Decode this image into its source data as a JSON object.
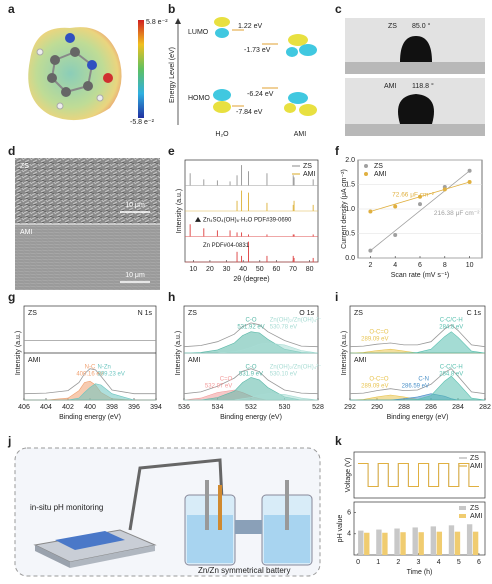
{
  "panel_labels": [
    "a",
    "b",
    "c",
    "d",
    "e",
    "f",
    "g",
    "h",
    "i",
    "j",
    "k"
  ],
  "a": {
    "max": "5.8 e⁻²",
    "min": "-5.8 e⁻²"
  },
  "b": {
    "y_axis": "Energy Level (eV)",
    "lumo": "LUMO",
    "homo": "HOMO",
    "h2o_lumo": "1.22 eV",
    "ami_lumo": "-1.73 eV",
    "ami_homo": "-6.24 eV",
    "h2o_homo": "-7.84 eV",
    "h2o": "H₂O",
    "ami": "AMI"
  },
  "c": {
    "top_name": "ZS",
    "top_angle": "85.0 °",
    "bottom_name": "AMI",
    "bottom_angle": "118.8 °"
  },
  "d": {
    "top_name": "ZS",
    "top_scale": "10 μm",
    "bottom_name": "AMI",
    "bottom_scale": "10 μm"
  },
  "j": {
    "left_label": "in-situ pH monitoring",
    "right_label": "Zn/Zn symmetrical battery"
  },
  "chart_data": [
    {
      "type": "stick",
      "xlabel": "2θ (degree)",
      "ylabel": "Intensity (a.u.)",
      "xlim": [
        5,
        85
      ],
      "xticks": [
        10,
        20,
        30,
        40,
        50,
        60,
        70,
        80
      ],
      "ylim": [
        0,
        1
      ],
      "legend": "upper right",
      "x": [
        8.1,
        16.3,
        24.5,
        32.1,
        36.3,
        39.0,
        43.2,
        54.3,
        70.1,
        70.6,
        82.1
      ],
      "series": [
        {
          "name": "ZS",
          "color": "#9e9e9e",
          "subplot": 0,
          "values": [
            0.6,
            0.3,
            0.25,
            0.2,
            0.5,
            1,
            0.7,
            0.6,
            0.5,
            0.4,
            0.3
          ]
        },
        {
          "name": "AMI",
          "color": "#e0b84a",
          "subplot": 1,
          "values": [
            0,
            0,
            0,
            0,
            0.5,
            1,
            0.9,
            0.4,
            0.3,
            0.5,
            0.3
          ]
        }
      ],
      "references": [
        {
          "name": "Zn₄SO₄(OH)₆·H₂O PDF#39-0690",
          "color": "#e05050",
          "subplot": 2,
          "values": [
            0.6,
            0.4,
            0.3,
            0.3,
            0.2,
            0.2,
            0.1,
            0.1,
            0.1,
            0.1,
            0.1
          ]
        },
        {
          "name": "Zn PDF#04-0831",
          "color": "#e05050",
          "subplot": 3,
          "values": [
            0,
            0,
            0,
            0,
            0.5,
            0.3,
            1,
            0.3,
            0.3,
            0.2,
            0.2
          ]
        }
      ]
    },
    {
      "type": "scatter",
      "xlabel": "Scan rate (mV s⁻¹)",
      "ylabel": "Current density (μA cm⁻²)",
      "xlim": [
        1,
        11
      ],
      "xticks": [
        2,
        4,
        6,
        8,
        10
      ],
      "ylim": [
        0,
        2
      ],
      "yticks": [
        {
          "value": 0,
          "label": "0.0"
        },
        {
          "value": 0.5,
          "label": "0.5"
        },
        {
          "value": 1,
          "label": "1.0"
        },
        {
          "value": 1.5,
          "label": "1.5"
        },
        {
          "value": 2,
          "label": "2.0"
        }
      ],
      "grid": true,
      "legend": "upper left",
      "x": [
        2,
        4,
        6,
        8,
        10
      ],
      "series": [
        {
          "name": "ZS",
          "color": "#a0a0a0",
          "values": [
            0.15,
            0.47,
            1.1,
            1.45,
            1.78
          ],
          "slope_label": "216.38 μF cm⁻²"
        },
        {
          "name": "AMI",
          "color": "#e0b040",
          "values": [
            0.95,
            1.05,
            1.25,
            1.4,
            1.55
          ],
          "slope_label": "72.66 μF cm⁻²"
        }
      ]
    },
    {
      "type": "spectrum",
      "title": "N 1s",
      "xlabel": "Binding energy (eV)",
      "ylabel": "Intensity (a.u.)",
      "xlim": [
        406,
        394
      ],
      "xticks": [
        406,
        404,
        402,
        400,
        398,
        396,
        394
      ],
      "ylim": [
        0,
        6
      ],
      "x": [
        406,
        404,
        402,
        401,
        400.5,
        400,
        399.5,
        399,
        398,
        396,
        394
      ],
      "series": [
        {
          "name": "ZS",
          "color": "#999999",
          "subplot": 0,
          "values": [
            2,
            2,
            2,
            2,
            2,
            2,
            2,
            2,
            2,
            2,
            2
          ]
        },
        {
          "name": "AMI",
          "color": "#999999",
          "subplot": 1,
          "values": [
            1,
            1.1,
            1.5,
            2.8,
            4.2,
            5,
            4.8,
            3.8,
            1.6,
            1,
            1
          ]
        },
        {
          "name": "N-C",
          "energy": "400.16 eV",
          "color": "#f0a070",
          "subplot": 1,
          "fill": true,
          "values": [
            0,
            0,
            0.3,
            1.5,
            2.8,
            3,
            2.4,
            1.2,
            0.2,
            0,
            0
          ]
        },
        {
          "name": "N-Zn",
          "energy": "399.23 eV",
          "color": "#6cc5c0",
          "subplot": 1,
          "fill": true,
          "values": [
            0,
            0,
            0,
            0.3,
            1.2,
            2,
            2.6,
            2.4,
            1,
            0,
            0
          ]
        }
      ]
    },
    {
      "type": "spectrum",
      "title": "O 1s",
      "xlabel": "Binding energy (eV)",
      "ylabel": "Intensity (a.u.)",
      "xlim": [
        536,
        528
      ],
      "xticks": [
        536,
        534,
        532,
        530,
        528
      ],
      "ylim": [
        0,
        6
      ],
      "x": [
        536,
        535,
        534,
        533,
        532.5,
        532,
        531.5,
        531,
        530,
        529,
        528
      ],
      "series": [
        {
          "name": "ZS",
          "color": "#999999",
          "subplot": 0,
          "values": [
            1,
            1.2,
            1.8,
            3,
            4.2,
            4.8,
            4.5,
            3.4,
            2,
            1.1,
            1
          ]
        },
        {
          "name": "C-O",
          "energy": "531.92 eV",
          "color": "#5ab8a8",
          "subplot": 0,
          "fill": true,
          "values": [
            0,
            0.1,
            0.5,
            1.6,
            2.8,
            3.4,
            3.2,
            2.2,
            0.6,
            0.1,
            0
          ]
        },
        {
          "name": "Zn(OH)₂/Zn(OH)₄²⁻",
          "energy": "530.78 eV",
          "color": "#a8dcd4",
          "subplot": 0,
          "fill": true,
          "values": [
            0,
            0,
            0,
            0.2,
            0.5,
            0.9,
            1.4,
            1.6,
            1.3,
            0.4,
            0
          ]
        },
        {
          "name": "AMI",
          "color": "#999999",
          "subplot": 1,
          "values": [
            1,
            1.3,
            2.2,
            3.5,
            4.6,
            5,
            4.5,
            3.2,
            1.6,
            1.1,
            1
          ]
        },
        {
          "name": "C=O",
          "energy": "532.97 eV",
          "color": "#f29a9a",
          "subplot": 1,
          "fill": true,
          "values": [
            0,
            0.3,
            1.2,
            1.6,
            1.2,
            0.6,
            0.2,
            0,
            0,
            0,
            0
          ]
        },
        {
          "name": "C-O",
          "energy": "531.9 eV",
          "color": "#5ab8a8",
          "subplot": 1,
          "fill": true,
          "values": [
            0,
            0,
            0.4,
            1.4,
            2.8,
            3.6,
            3.2,
            2,
            0.5,
            0,
            0
          ]
        },
        {
          "name": "Zn(OH)₂/Zn(OH)₄²⁻",
          "energy": "530.10 eV",
          "color": "#a8dcd4",
          "subplot": 1,
          "fill": true,
          "values": [
            0,
            0,
            0,
            0,
            0.2,
            0.4,
            0.8,
            1,
            0.9,
            0.3,
            0
          ]
        }
      ]
    },
    {
      "type": "spectrum",
      "title": "C 1s",
      "xlabel": "Binding energy (eV)",
      "ylabel": "Intensity (a.u.)",
      "xlim": [
        292,
        282
      ],
      "xticks": [
        292,
        290,
        288,
        286,
        284,
        282
      ],
      "ylim": [
        0,
        6
      ],
      "x": [
        292,
        291,
        290,
        289,
        288,
        287,
        286,
        285,
        284.5,
        284,
        283,
        282
      ],
      "series": [
        {
          "name": "ZS",
          "color": "#999999",
          "subplot": 0,
          "values": [
            1,
            1.1,
            1.4,
            1.6,
            1.3,
            1.3,
            1.8,
            3.8,
            4.5,
            3.6,
            1.3,
            1
          ]
        },
        {
          "name": "O-C=O",
          "energy": "289.09 eV",
          "color": "#e8c450",
          "subplot": 0,
          "fill": true,
          "values": [
            0,
            0.1,
            0.4,
            0.6,
            0.3,
            0,
            0,
            0,
            0,
            0,
            0,
            0
          ]
        },
        {
          "name": "C-C/C-H",
          "energy": "284.8 eV",
          "color": "#5ac0b0",
          "subplot": 0,
          "fill": true,
          "values": [
            0,
            0,
            0,
            0,
            0,
            0.1,
            0.6,
            2.6,
            3.4,
            2.5,
            0.3,
            0
          ]
        },
        {
          "name": "AMI",
          "color": "#999999",
          "subplot": 1,
          "values": [
            1,
            1.1,
            1.5,
            1.8,
            1.5,
            1.6,
            2.5,
            4.4,
            5,
            3.8,
            1.3,
            1
          ]
        },
        {
          "name": "O-C=O",
          "energy": "289.09 eV",
          "color": "#e8c450",
          "subplot": 1,
          "fill": true,
          "values": [
            0,
            0.1,
            0.5,
            0.8,
            0.5,
            0.1,
            0,
            0,
            0,
            0,
            0,
            0
          ]
        },
        {
          "name": "C-N",
          "energy": "286.59 eV",
          "color": "#4a90c8",
          "subplot": 1,
          "fill": true,
          "values": [
            0,
            0,
            0,
            0,
            0.2,
            0.5,
            1,
            0.6,
            0.2,
            0,
            0,
            0
          ]
        },
        {
          "name": "C-C/C-H",
          "energy": "284.8 eV",
          "color": "#5ac0b0",
          "subplot": 1,
          "fill": true,
          "values": [
            0,
            0,
            0,
            0,
            0,
            0.1,
            0.7,
            3,
            3.8,
            2.7,
            0.3,
            0
          ]
        }
      ]
    },
    {
      "type": "line",
      "ylabel": "Voltage (V)",
      "xlim": [
        -0.2,
        6.3
      ],
      "ylim": [
        -0.1,
        0.1
      ],
      "legend": "upper right",
      "x": [
        0,
        0.5,
        0.5,
        1,
        1,
        1.5,
        1.5,
        2,
        2,
        2.5,
        2.5,
        3,
        3,
        3.5,
        3.5,
        4,
        4,
        4.5,
        4.5,
        5,
        5,
        5.5,
        5.5,
        6
      ],
      "series": [
        {
          "name": "ZS",
          "color": "#b0b0b0",
          "values": [
            0.05,
            0.05,
            -0.05,
            -0.05,
            0.05,
            0.05,
            -0.05,
            -0.05,
            0.05,
            0.05,
            -0.05,
            -0.05,
            0.05,
            0.05,
            -0.05,
            -0.05,
            0.05,
            0.05,
            -0.05,
            -0.05,
            0.05,
            0.05,
            -0.05,
            -0.05
          ]
        },
        {
          "name": "AMI",
          "color": "#e0b040",
          "values": [
            0.05,
            0.05,
            -0.05,
            -0.05,
            0.05,
            0.05,
            -0.05,
            -0.05,
            0.05,
            0.05,
            -0.05,
            -0.05,
            0.05,
            0.05,
            -0.05,
            -0.05,
            0.05,
            0.05,
            -0.05,
            -0.05,
            0.05,
            0.05,
            -0.05,
            -0.05
          ]
        }
      ]
    },
    {
      "type": "bar",
      "xlabel": "Time (h)",
      "ylabel": "pH value",
      "xlim": [
        -0.2,
        6.3
      ],
      "xticks": [
        0,
        1,
        2,
        3,
        4,
        5,
        6
      ],
      "ylim": [
        2,
        7
      ],
      "yticks": [
        4,
        6
      ],
      "legend": "upper right",
      "x": [
        0.3,
        1.2,
        2.1,
        3,
        3.9,
        4.8,
        5.7
      ],
      "series": [
        {
          "name": "ZS",
          "color": "#c8c8c8",
          "values": [
            4.3,
            4.4,
            4.5,
            4.6,
            4.7,
            4.8,
            4.9
          ]
        },
        {
          "name": "AMI",
          "color": "#f0cc70",
          "values": [
            4.1,
            4.1,
            4.15,
            4.15,
            4.2,
            4.2,
            4.2
          ]
        }
      ]
    }
  ]
}
